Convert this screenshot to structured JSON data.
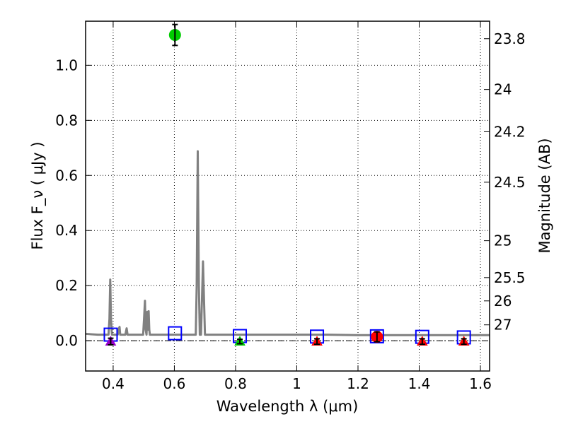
{
  "chart_data": {
    "type": "scatter",
    "xlabel": "Wavelength  λ (μm)",
    "ylabel": "Flux  F_ν  ( μJy )",
    "y2label": "Magnitude (AB)",
    "xlim": [
      0.31,
      1.63
    ],
    "ylim": [
      -0.11,
      1.16
    ],
    "x_ticks": [
      0.4,
      0.6,
      0.8,
      1.0,
      1.2,
      1.4,
      1.6
    ],
    "x_tick_labels": [
      "0.4",
      "0.6",
      "0.8",
      "1",
      "1.2",
      "1.4",
      "1.6"
    ],
    "y_ticks": [
      0.0,
      0.2,
      0.4,
      0.6,
      0.8,
      1.0
    ],
    "y_tick_labels": [
      "0.0",
      "0.2",
      "0.4",
      "0.6",
      "0.8",
      "1.0"
    ],
    "magnitude_ticks": [
      {
        "label": "23.8",
        "mag": 23.8
      },
      {
        "label": "24",
        "mag": 24.0
      },
      {
        "label": "24.2",
        "mag": 24.2
      },
      {
        "label": "24.5",
        "mag": 24.5
      },
      {
        "label": "25",
        "mag": 25.0
      },
      {
        "label": "25.5",
        "mag": 25.5
      },
      {
        "label": "26",
        "mag": 26.0
      },
      {
        "label": "27",
        "mag": 27.0
      }
    ],
    "grid": true,
    "zero_line": 0.0,
    "model_sed": {
      "color": "#808080",
      "x": [
        0.31,
        0.35,
        0.385,
        0.388,
        0.3905,
        0.393,
        0.396,
        0.4,
        0.415,
        0.419,
        0.421,
        0.423,
        0.44,
        0.444,
        0.447,
        0.45,
        0.48,
        0.498,
        0.501,
        0.504,
        0.506,
        0.509,
        0.5115,
        0.5135,
        0.516,
        0.518,
        0.52,
        0.55,
        0.6,
        0.65,
        0.67,
        0.673,
        0.6765,
        0.68,
        0.683,
        0.687,
        0.6935,
        0.7,
        0.71,
        0.8,
        0.9,
        1.0,
        1.1,
        1.2,
        1.3,
        1.4,
        1.5,
        1.63
      ],
      "y": [
        0.025,
        0.022,
        0.022,
        0.08,
        0.222,
        0.08,
        0.022,
        0.022,
        0.022,
        0.045,
        0.05,
        0.022,
        0.022,
        0.045,
        0.022,
        0.022,
        0.022,
        0.022,
        0.08,
        0.145,
        0.04,
        0.022,
        0.105,
        0.04,
        0.107,
        0.04,
        0.022,
        0.022,
        0.022,
        0.022,
        0.022,
        0.2,
        0.688,
        0.2,
        0.022,
        0.022,
        0.288,
        0.022,
        0.022,
        0.022,
        0.022,
        0.022,
        0.022,
        0.02,
        0.02,
        0.02,
        0.02,
        0.02
      ]
    },
    "model_band_flux": {
      "marker": "open-square",
      "color": "#0000ff",
      "x": [
        0.392,
        0.602,
        0.814,
        1.066,
        1.262,
        1.41,
        1.546
      ],
      "y": [
        0.022,
        0.027,
        0.017,
        0.015,
        0.016,
        0.014,
        0.012
      ]
    },
    "observed": [
      {
        "x": 0.392,
        "y": -0.003,
        "err": 0.012,
        "marker": "triangle",
        "color": "#9900cc"
      },
      {
        "x": 0.602,
        "y": 1.11,
        "err": 0.038,
        "marker": "circle",
        "color": "#00cc00"
      },
      {
        "x": 0.814,
        "y": -0.003,
        "err": 0.008,
        "marker": "triangle",
        "color": "#00cc00"
      },
      {
        "x": 1.066,
        "y": -0.003,
        "err": 0.01,
        "marker": "triangle",
        "color": "#ff0000"
      },
      {
        "x": 1.262,
        "y": 0.014,
        "err": 0.018,
        "marker": "circle",
        "color": "#ff0000"
      },
      {
        "x": 1.41,
        "y": -0.003,
        "err": 0.01,
        "marker": "triangle",
        "color": "#ff0000"
      },
      {
        "x": 1.546,
        "y": -0.003,
        "err": 0.01,
        "marker": "triangle",
        "color": "#ff0000"
      }
    ]
  }
}
